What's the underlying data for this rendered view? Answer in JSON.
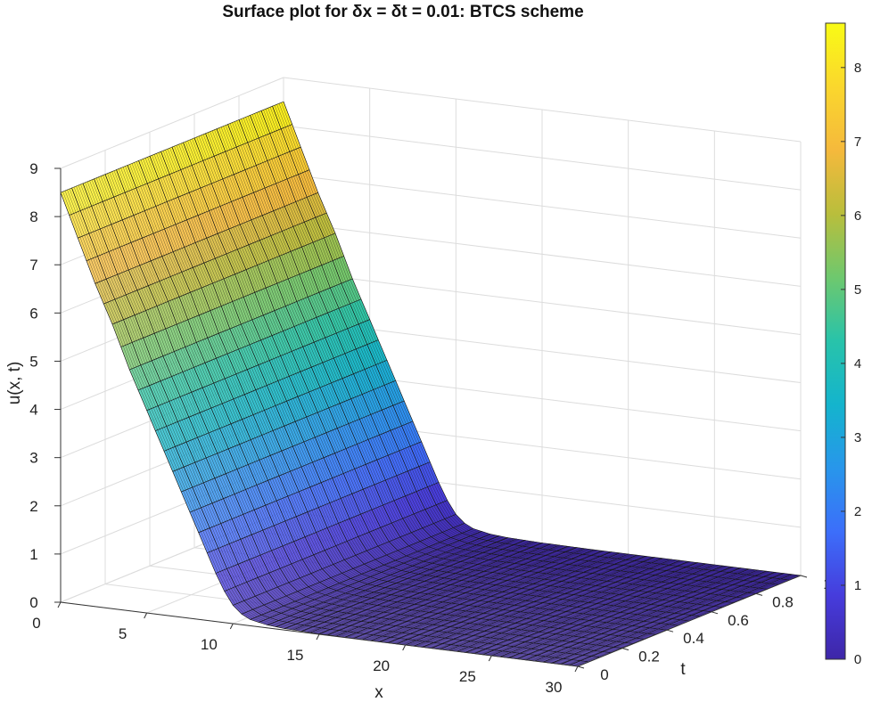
{
  "chart_data": {
    "type": "surface",
    "title": "Surface plot for δx = δt = 0.01: BTCS scheme",
    "xlabel": "x",
    "ylabel": "t",
    "zlabel": "u(x, t)",
    "xlim": [
      0,
      30
    ],
    "ylim": [
      0,
      1
    ],
    "zlim": [
      0,
      9
    ],
    "x_ticks": [
      "0",
      "5",
      "10",
      "15",
      "20",
      "25",
      "30"
    ],
    "y_ticks": [
      "0",
      "0.2",
      "0.4",
      "0.6",
      "0.8",
      "1"
    ],
    "z_ticks": [
      "0",
      "1",
      "2",
      "3",
      "4",
      "5",
      "6",
      "7",
      "8",
      "9"
    ],
    "colorbar": {
      "colormap": "parula",
      "range": [
        0,
        8.6
      ],
      "ticks": [
        "0",
        "1",
        "2",
        "3",
        "4",
        "5",
        "6",
        "7",
        "8"
      ]
    },
    "grid": true,
    "surface_profile": {
      "x": [
        0,
        1,
        2,
        3,
        4,
        5,
        6,
        7,
        8,
        9,
        9.5,
        10,
        10.5,
        11,
        12,
        13,
        15,
        18,
        22,
        26,
        30
      ],
      "u": [
        8.5,
        7.6,
        6.7,
        5.9,
        5.0,
        4.2,
        3.4,
        2.6,
        1.8,
        1.0,
        0.65,
        0.38,
        0.22,
        0.13,
        0.06,
        0.03,
        0.01,
        0.0,
        0.0,
        0.0,
        0.0
      ],
      "t_dependence": "none"
    }
  }
}
